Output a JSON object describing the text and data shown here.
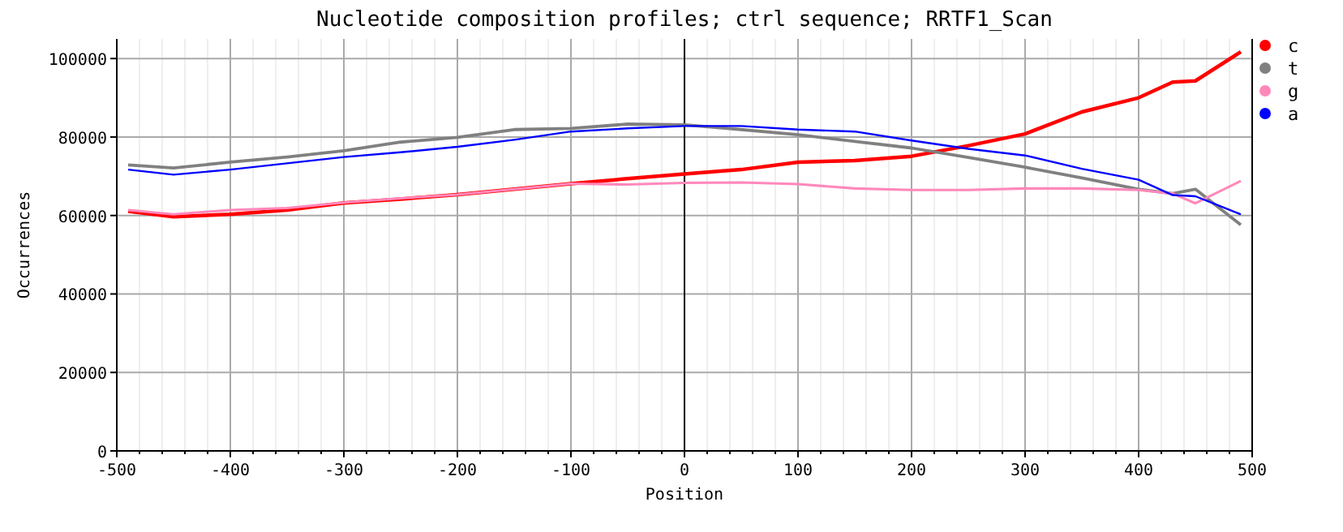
{
  "chart_data": {
    "type": "line",
    "title": "Nucleotide composition profiles; ctrl sequence; RRTF1_Scan",
    "xlabel": "Position",
    "ylabel": "Occurrences",
    "x": [
      -490,
      -450,
      -400,
      -350,
      -300,
      -250,
      -200,
      -150,
      -100,
      -50,
      0,
      50,
      100,
      150,
      200,
      250,
      300,
      350,
      400,
      430,
      450,
      490
    ],
    "series": [
      {
        "name": "c",
        "color": "#ff0000",
        "values": [
          61100,
          59700,
          60300,
          61400,
          63200,
          64200,
          65300,
          66700,
          68100,
          69400,
          70600,
          71700,
          73600,
          74000,
          75100,
          77800,
          80800,
          86400,
          90000,
          94000,
          94300,
          101700
        ]
      },
      {
        "name": "t",
        "color": "#808080",
        "values": [
          72900,
          72100,
          73600,
          74900,
          76500,
          78700,
          79900,
          81900,
          82200,
          83300,
          83100,
          81900,
          80600,
          78900,
          77200,
          74800,
          72300,
          69600,
          66700,
          65600,
          66700,
          57600
        ]
      },
      {
        "name": "g",
        "color": "#ff88bb",
        "values": [
          61400,
          60300,
          61400,
          61900,
          63300,
          64400,
          65300,
          66700,
          68100,
          67900,
          68300,
          68400,
          68000,
          66900,
          66500,
          66500,
          66900,
          66900,
          66500,
          65600,
          63100,
          68800
        ]
      },
      {
        "name": "a",
        "color": "#0000ff",
        "values": [
          71700,
          70400,
          71700,
          73300,
          74900,
          76100,
          77500,
          79300,
          81400,
          82200,
          82800,
          82800,
          81900,
          81400,
          79100,
          77000,
          75300,
          71900,
          69100,
          65200,
          64900,
          60300
        ]
      }
    ],
    "xlim": [
      -500,
      500
    ],
    "xticks": [
      -500,
      {
        "value": -480,
        "label": null
      },
      {
        "value": -460,
        "label": null
      },
      {
        "value": -440,
        "label": null
      },
      {
        "value": -420,
        "label": null
      },
      -400,
      {
        "value": -380,
        "label": null
      },
      {
        "value": -360,
        "label": null
      },
      {
        "value": -340,
        "label": null
      },
      {
        "value": -320,
        "label": null
      },
      -300,
      {
        "value": -280,
        "label": null
      },
      {
        "value": -260,
        "label": null
      },
      {
        "value": -240,
        "label": null
      },
      {
        "value": -220,
        "label": null
      },
      -200,
      {
        "value": -180,
        "label": null
      },
      {
        "value": -160,
        "label": null
      },
      {
        "value": -140,
        "label": null
      },
      {
        "value": -120,
        "label": null
      },
      -100,
      {
        "value": -80,
        "label": null
      },
      {
        "value": -60,
        "label": null
      },
      {
        "value": -40,
        "label": null
      },
      {
        "value": -20,
        "label": null
      },
      0,
      {
        "value": 20,
        "label": null
      },
      {
        "value": 40,
        "label": null
      },
      {
        "value": 60,
        "label": null
      },
      {
        "value": 80,
        "label": null
      },
      100,
      {
        "value": 120,
        "label": null
      },
      {
        "value": 140,
        "label": null
      },
      {
        "value": 160,
        "label": null
      },
      {
        "value": 180,
        "label": null
      },
      200,
      {
        "value": 220,
        "label": null
      },
      {
        "value": 240,
        "label": null
      },
      {
        "value": 260,
        "label": null
      },
      {
        "value": 280,
        "label": null
      },
      300,
      {
        "value": 320,
        "label": null
      },
      {
        "value": 340,
        "label": null
      },
      {
        "value": 360,
        "label": null
      },
      {
        "value": 380,
        "label": null
      },
      400,
      {
        "value": 420,
        "label": null
      },
      {
        "value": 440,
        "label": null
      },
      {
        "value": 460,
        "label": null
      },
      {
        "value": 480,
        "label": null
      },
      500
    ],
    "ylim": [
      0,
      105000
    ],
    "yticks": [
      0,
      20000,
      40000,
      60000,
      80000,
      100000
    ],
    "ref_lines": [
      {
        "axis": "x",
        "value": 0,
        "color": "#000000"
      }
    ],
    "grid": true,
    "legend": "top right",
    "marker": "none",
    "line_style": "solid"
  }
}
